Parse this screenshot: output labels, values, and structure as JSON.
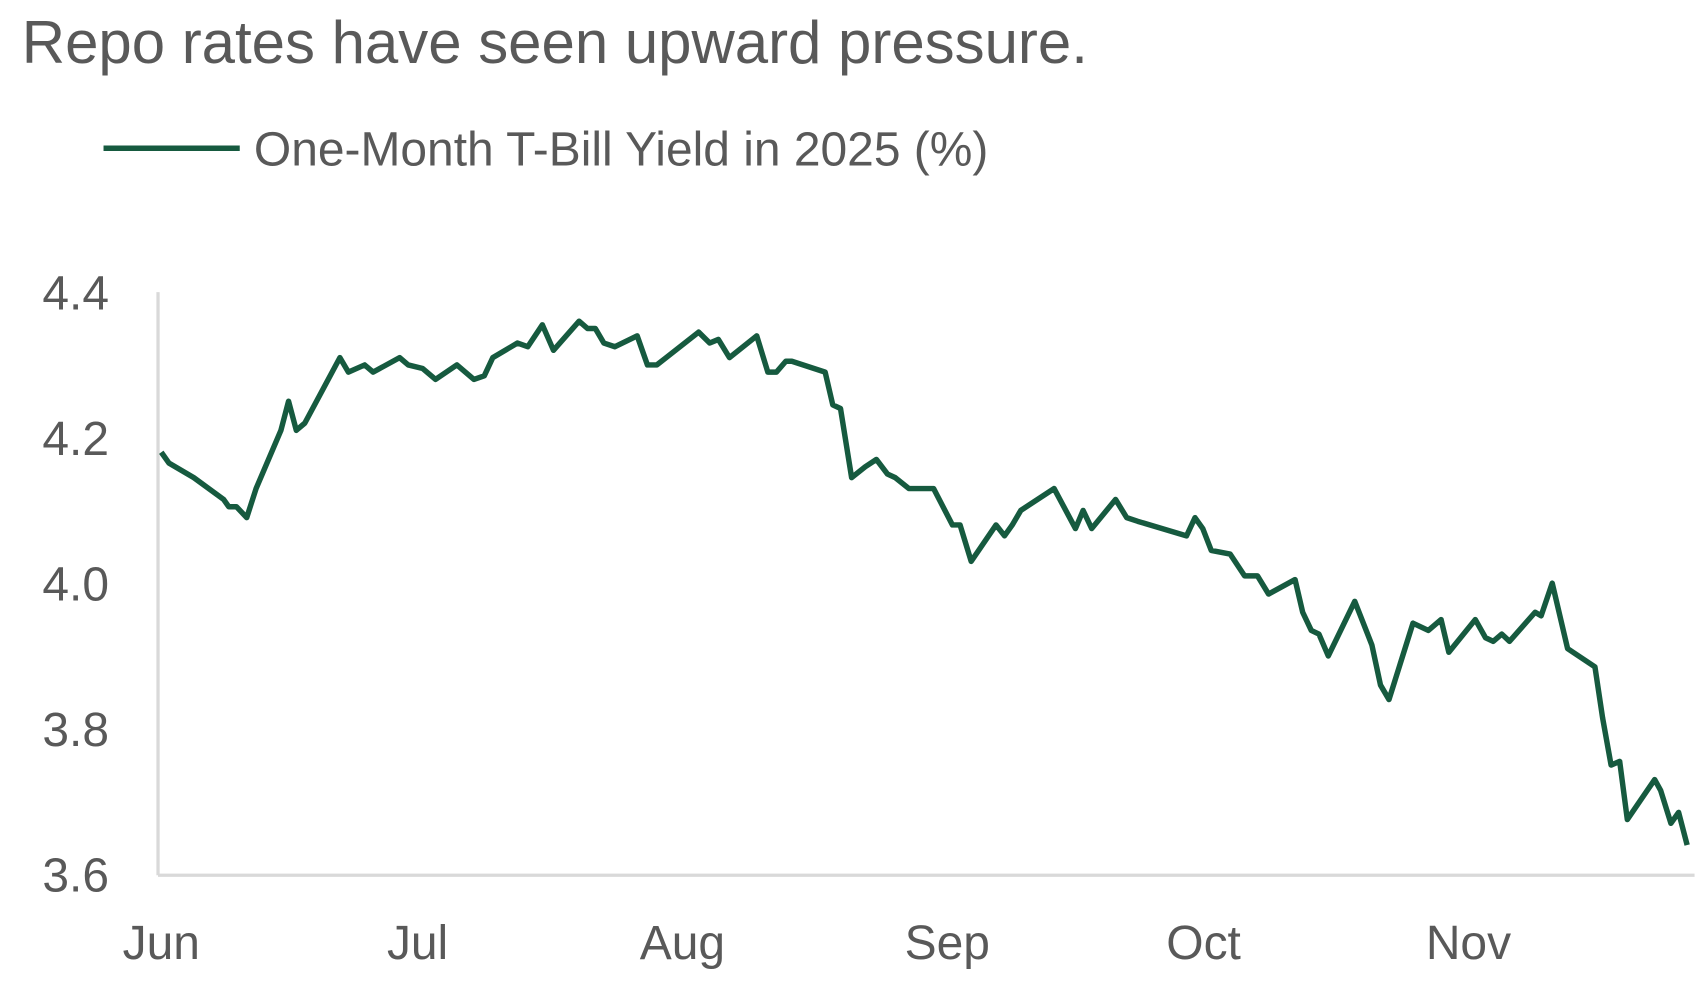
{
  "chart_data": {
    "type": "line",
    "title": "Repo rates have seen upward pressure.",
    "xlabel": "",
    "ylabel": "",
    "x_unit": "days since Jun 1, 2025",
    "xlim": [
      0,
      179
    ],
    "ylim": [
      3.6,
      4.4
    ],
    "yticks": [
      {
        "value": 4.4,
        "label": "4.4"
      },
      {
        "value": 4.2,
        "label": "4.2"
      },
      {
        "value": 4.0,
        "label": "4.0"
      },
      {
        "value": 3.8,
        "label": "3.8"
      },
      {
        "value": 3.6,
        "label": "3.6"
      }
    ],
    "xticks": [
      {
        "value": 0,
        "label": "Jun"
      },
      {
        "value": 30,
        "label": "Jul"
      },
      {
        "value": 61,
        "label": "Aug"
      },
      {
        "value": 92,
        "label": "Sep"
      },
      {
        "value": 122,
        "label": "Oct"
      },
      {
        "value": 153,
        "label": "Nov"
      }
    ],
    "grid": false,
    "legend_position": "top-left",
    "series": [
      {
        "name": "One-Month T-Bill Yield in 2025 (%)",
        "color": "#165a3f",
        "x": [
          0,
          0.9,
          3.8,
          7.3,
          7.9,
          8.8,
          10,
          11.1,
          14,
          14.9,
          15.8,
          16.8,
          20.9,
          21.9,
          23.8,
          24.8,
          27.9,
          28.9,
          30.6,
          32.1,
          34.6,
          36.6,
          37.8,
          38.8,
          41.7,
          42.9,
          44.6,
          45.9,
          48.9,
          49.9,
          50.8,
          51.8,
          53.1,
          55.7,
          56.9,
          58,
          59.1,
          62.9,
          64.2,
          65.2,
          66.5,
          69.7,
          71,
          72,
          73.1,
          73.8,
          77.7,
          78.6,
          79.5,
          80.8,
          82.4,
          83.7,
          85,
          85.9,
          87.5,
          90.4,
          92.6,
          93.5,
          94.8,
          97.7,
          98.7,
          99.6,
          100.6,
          104.5,
          107,
          107.9,
          108.9,
          111.7,
          113,
          114.3,
          120,
          121,
          121.9,
          122.9,
          125.1,
          126.8,
          128.3,
          129.6,
          132.7,
          133.6,
          134.6,
          135.5,
          136.6,
          139.7,
          141.7,
          142.7,
          143.7,
          146.5,
          148.3,
          149.8,
          150.7,
          153.8,
          155,
          155.9,
          156.9,
          157.8,
          160.8,
          161.5,
          162.8,
          164.6,
          167.8,
          168.7,
          169.7,
          170.7,
          171.6,
          174.8,
          175.5,
          176.7,
          177.6,
          178.6
        ],
        "values": [
          4.18,
          4.165,
          4.145,
          4.115,
          4.105,
          4.105,
          4.09,
          4.13,
          4.21,
          4.25,
          4.21,
          4.22,
          4.31,
          4.29,
          4.3,
          4.29,
          4.31,
          4.3,
          4.295,
          4.28,
          4.3,
          4.28,
          4.285,
          4.31,
          4.33,
          4.325,
          4.355,
          4.32,
          4.36,
          4.35,
          4.35,
          4.33,
          4.325,
          4.34,
          4.3,
          4.3,
          4.31,
          4.345,
          4.33,
          4.335,
          4.31,
          4.34,
          4.29,
          4.29,
          4.305,
          4.305,
          4.29,
          4.245,
          4.24,
          4.145,
          4.16,
          4.17,
          4.15,
          4.145,
          4.13,
          4.13,
          4.08,
          4.08,
          4.03,
          4.08,
          4.065,
          4.08,
          4.1,
          4.13,
          4.075,
          4.1,
          4.075,
          4.115,
          4.09,
          4.085,
          4.065,
          4.09,
          4.075,
          4.045,
          4.04,
          4.01,
          4.01,
          3.985,
          4.005,
          3.96,
          3.935,
          3.93,
          3.9,
          3.975,
          3.915,
          3.86,
          3.84,
          3.945,
          3.935,
          3.95,
          3.905,
          3.95,
          3.925,
          3.92,
          3.93,
          3.92,
          3.96,
          3.955,
          4.0,
          3.91,
          3.885,
          3.815,
          3.75,
          3.755,
          3.675,
          3.73,
          3.715,
          3.67,
          3.685,
          3.64
        ]
      }
    ]
  }
}
